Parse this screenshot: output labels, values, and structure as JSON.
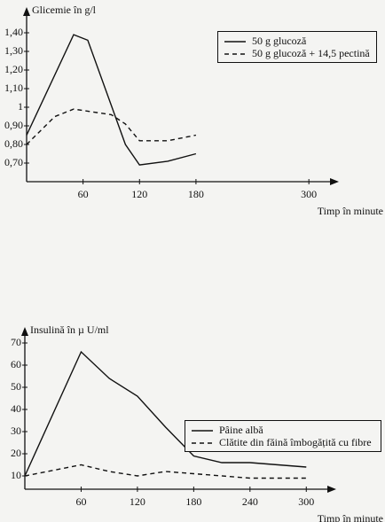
{
  "chart_data": [
    {
      "type": "line",
      "y_label": "Glicemie în g/l",
      "x_label": "Timp în minute",
      "xlim": [
        0,
        330
      ],
      "xticks": [
        60,
        120,
        180,
        300
      ],
      "ylim": [
        0.6,
        1.5
      ],
      "yticks": [
        {
          "value": 0.7,
          "label": "0,70"
        },
        {
          "value": 0.8,
          "label": "0,80"
        },
        {
          "value": 0.9,
          "label": "0,90"
        },
        1,
        {
          "value": 1.1,
          "label": "1,10"
        },
        {
          "value": 1.2,
          "label": "1,20"
        },
        {
          "value": 1.3,
          "label": "1,30"
        },
        {
          "value": 1.4,
          "label": "1,40"
        }
      ],
      "grid": false,
      "legend": "upper right",
      "series": [
        {
          "name": "50 g glucoză",
          "color": "#111111",
          "linestyle": "solid",
          "x": [
            0,
            50,
            65,
            105,
            120,
            150,
            180
          ],
          "values": [
            0.85,
            1.39,
            1.36,
            0.8,
            0.69,
            0.71,
            0.75
          ]
        },
        {
          "name": "50 g glucoză + 14,5 pectină",
          "color": "#111111",
          "linestyle": "dashed",
          "x": [
            0,
            30,
            50,
            90,
            105,
            120,
            150,
            180
          ],
          "values": [
            0.8,
            0.95,
            0.99,
            0.96,
            0.91,
            0.82,
            0.82,
            0.85
          ]
        }
      ]
    },
    {
      "type": "line",
      "y_label": "Insulină în µ U/ml",
      "x_label": "Timp în minute",
      "xlim": [
        0,
        330
      ],
      "xticks": [
        60,
        120,
        180,
        240,
        300
      ],
      "ylim": [
        4,
        74
      ],
      "yticks": [
        10,
        20,
        30,
        40,
        50,
        60,
        70
      ],
      "grid": false,
      "legend": "center right",
      "series": [
        {
          "name": "Pâine albă",
          "color": "#111111",
          "linestyle": "solid",
          "x": [
            0,
            60,
            90,
            120,
            150,
            180,
            210,
            240,
            300
          ],
          "values": [
            10,
            66,
            54,
            46,
            32,
            19,
            16,
            16,
            14
          ]
        },
        {
          "name": "Clătite din făină îmbogățită cu fibre",
          "color": "#111111",
          "linestyle": "dashed",
          "x": [
            0,
            60,
            90,
            120,
            150,
            180,
            240,
            300
          ],
          "values": [
            10,
            15,
            12,
            10,
            12,
            11,
            9,
            9
          ]
        }
      ]
    }
  ]
}
